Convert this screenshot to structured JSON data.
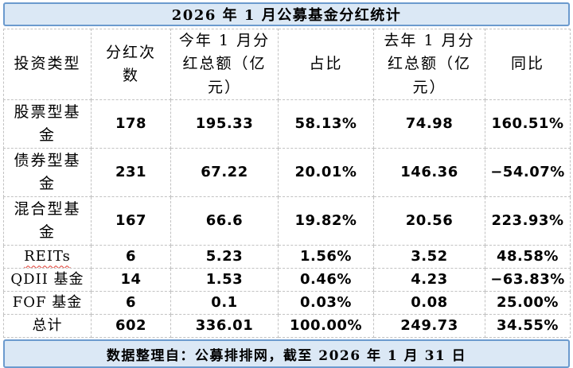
{
  "title": "2026 年 1 月公募基金分红统计",
  "table": {
    "headers": [
      "投资类型",
      "分红次数",
      "今年 1 月分红总额（亿元）",
      "占比",
      "去年 1 月分红总额（亿元）",
      "同比"
    ],
    "rows": [
      {
        "cells": [
          "股票型基金",
          "178",
          "195.33",
          "58.13%",
          "74.98",
          "160.51%"
        ]
      },
      {
        "cells": [
          "债券型基金",
          "231",
          "67.22",
          "20.01%",
          "146.36",
          "−54.07%"
        ]
      },
      {
        "cells": [
          "混合型基金",
          "167",
          "66.6",
          "19.82%",
          "20.56",
          "223.93%"
        ]
      },
      {
        "cells": [
          "REITs",
          "6",
          "5.23",
          "1.56%",
          "3.52",
          "48.58%"
        ],
        "spellcheck_underline": true
      },
      {
        "cells": [
          "QDII 基金",
          "14",
          "1.53",
          "0.46%",
          "4.23",
          "−63.83%"
        ]
      },
      {
        "cells": [
          "FOF 基金",
          "6",
          "0.1",
          "0.03%",
          "0.08",
          "25.00%"
        ]
      },
      {
        "cells": [
          "总计",
          "602",
          "336.01",
          "100.00%",
          "249.73",
          "34.55%"
        ]
      }
    ]
  },
  "footer": {
    "text": "数据整理自：公募排排网，截至 2026 年 1 月 31 日"
  },
  "colors": {
    "band_background": "#dbe8f5",
    "band_border": "#6b9ace",
    "grid_dashed": "#c2c2c2",
    "text": "#000000",
    "spellcheck_wavy": "#e03c31"
  }
}
